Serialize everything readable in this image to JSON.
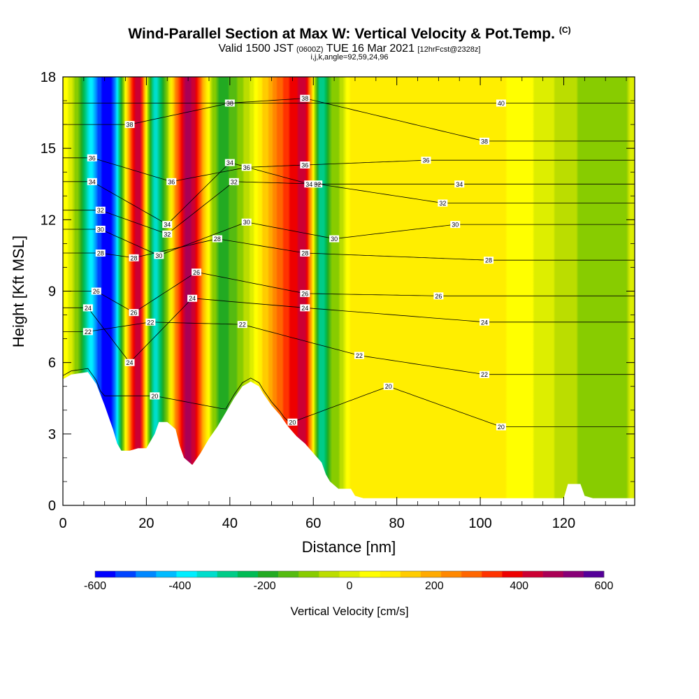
{
  "titles": {
    "main": "Wind-Parallel Section at Max W: Vertical Velocity & Pot.Temp.",
    "copyright": "(C)",
    "valid_prefix": "Valid 1500 JST",
    "valid_zulu": "(0600Z)",
    "valid_date": "TUE 16 Mar 2021",
    "forecast": "[12hrFcst@2328z]",
    "ijk": "i,j,k,angle=92,59,24,96"
  },
  "chart_data": {
    "type": "heatmap",
    "xlabel": "Distance [nm]",
    "ylabel": "Height [Kft MSL]",
    "xlim": [
      0,
      137
    ],
    "ylim": [
      0,
      18
    ],
    "x_ticks": [
      "0",
      "20",
      "40",
      "60",
      "80",
      "100",
      "120"
    ],
    "x_tick_values": [
      0,
      20,
      40,
      60,
      80,
      100,
      120
    ],
    "y_ticks": [
      "0",
      "3",
      "6",
      "9",
      "12",
      "15",
      "18"
    ],
    "y_tick_values": [
      0,
      3,
      6,
      9,
      12,
      15,
      18
    ],
    "colorbar": {
      "title": "Vertical Velocity [cm/s]",
      "labels": [
        "-600",
        "-400",
        "-200",
        "0",
        "200",
        "400",
        "600"
      ],
      "label_values": [
        -600,
        -400,
        -200,
        0,
        200,
        400,
        600
      ],
      "colors": [
        "#0000ff",
        "#0044ff",
        "#0088ff",
        "#00bbff",
        "#00eeff",
        "#00ddcc",
        "#00cc88",
        "#00bb55",
        "#22aa22",
        "#55bb11",
        "#88cc00",
        "#bbdd00",
        "#ddee00",
        "#ffff00",
        "#ffee00",
        "#ffcc00",
        "#ffaa00",
        "#ff8800",
        "#ff6600",
        "#ff3300",
        "#ee0000",
        "#cc0033",
        "#aa0055",
        "#880077",
        "#550099"
      ]
    },
    "velocity_bands": [
      {
        "x": 11,
        "w": -600
      },
      {
        "x": 18,
        "w": 450
      },
      {
        "x": 22,
        "w": -330
      },
      {
        "x": 30,
        "w": 480
      },
      {
        "x": 38,
        "w": -180
      },
      {
        "x": 58,
        "w": 420
      },
      {
        "x": 62,
        "w": -300
      },
      {
        "x": 65,
        "w": -100
      },
      {
        "x": 70,
        "w": 100
      },
      {
        "x": 100,
        "w": 90
      },
      {
        "x": 134,
        "w": -120
      }
    ],
    "terrain_kft": [
      [
        0,
        5.3
      ],
      [
        2,
        5.5
      ],
      [
        6,
        5.6
      ],
      [
        8,
        5.1
      ],
      [
        10,
        4.2
      ],
      [
        12,
        3.2
      ],
      [
        13,
        2.6
      ],
      [
        14,
        2.3
      ],
      [
        16,
        2.3
      ],
      [
        18,
        2.4
      ],
      [
        20,
        2.4
      ],
      [
        22,
        3.0
      ],
      [
        23,
        3.5
      ],
      [
        25,
        3.5
      ],
      [
        27,
        3.2
      ],
      [
        28,
        2.5
      ],
      [
        29,
        2.0
      ],
      [
        31,
        1.7
      ],
      [
        33,
        2.2
      ],
      [
        35,
        2.8
      ],
      [
        37,
        3.3
      ],
      [
        39,
        3.9
      ],
      [
        41,
        4.5
      ],
      [
        43,
        5.0
      ],
      [
        45,
        5.2
      ],
      [
        47,
        5.0
      ],
      [
        48,
        4.7
      ],
      [
        50,
        4.2
      ],
      [
        52,
        3.8
      ],
      [
        54,
        3.3
      ],
      [
        56,
        2.9
      ],
      [
        58,
        2.6
      ],
      [
        60,
        2.2
      ],
      [
        62,
        1.8
      ],
      [
        63,
        1.3
      ],
      [
        64,
        1.0
      ],
      [
        66,
        0.7
      ],
      [
        69,
        0.7
      ],
      [
        70,
        0.4
      ],
      [
        72,
        0.3
      ],
      [
        120,
        0.3
      ],
      [
        121,
        0.9
      ],
      [
        124,
        0.9
      ],
      [
        125,
        0.4
      ],
      [
        127,
        0.3
      ],
      [
        137,
        0.3
      ]
    ],
    "isentropes": [
      {
        "theta": 20,
        "label_positions": [
          [
            22,
            4.6
          ],
          [
            55,
            3.5
          ],
          [
            78,
            5.0
          ],
          [
            105,
            3.3
          ]
        ]
      },
      {
        "theta": 22,
        "label_positions": [
          [
            6,
            7.3
          ],
          [
            21,
            7.7
          ],
          [
            43,
            7.6
          ],
          [
            71,
            6.3
          ],
          [
            101,
            5.5
          ]
        ]
      },
      {
        "theta": 24,
        "label_positions": [
          [
            6,
            8.3
          ],
          [
            16,
            6.0
          ],
          [
            31,
            8.7
          ],
          [
            58,
            8.3
          ],
          [
            101,
            7.7
          ]
        ]
      },
      {
        "theta": 26,
        "label_positions": [
          [
            8,
            9.0
          ],
          [
            17,
            8.1
          ],
          [
            32,
            9.8
          ],
          [
            58,
            8.9
          ],
          [
            90,
            8.8
          ]
        ]
      },
      {
        "theta": 28,
        "label_positions": [
          [
            9,
            10.6
          ],
          [
            17,
            10.4
          ],
          [
            37,
            11.2
          ],
          [
            58,
            10.6
          ],
          [
            102,
            10.3
          ]
        ]
      },
      {
        "theta": 30,
        "label_positions": [
          [
            9,
            11.6
          ],
          [
            23,
            10.5
          ],
          [
            44,
            11.9
          ],
          [
            65,
            11.2
          ],
          [
            94,
            11.8
          ]
        ]
      },
      {
        "theta": 32,
        "label_positions": [
          [
            9,
            12.4
          ],
          [
            25,
            11.4
          ],
          [
            41,
            13.6
          ],
          [
            61,
            13.5
          ],
          [
            91,
            12.7
          ]
        ]
      },
      {
        "theta": 34,
        "label_positions": [
          [
            7,
            13.6
          ],
          [
            25,
            11.8
          ],
          [
            40,
            14.4
          ],
          [
            59,
            13.5
          ],
          [
            95,
            13.5
          ]
        ]
      },
      {
        "theta": 36,
        "label_positions": [
          [
            7,
            14.6
          ],
          [
            26,
            13.6
          ],
          [
            44,
            14.2
          ],
          [
            58,
            14.3
          ],
          [
            87,
            14.5
          ]
        ]
      },
      {
        "theta": 38,
        "label_positions": [
          [
            16,
            16.0
          ],
          [
            40,
            16.9
          ],
          [
            58,
            17.1
          ],
          [
            101,
            15.3
          ]
        ]
      },
      {
        "theta": 40,
        "label_positions": [
          [
            105,
            16.9
          ]
        ]
      }
    ]
  }
}
